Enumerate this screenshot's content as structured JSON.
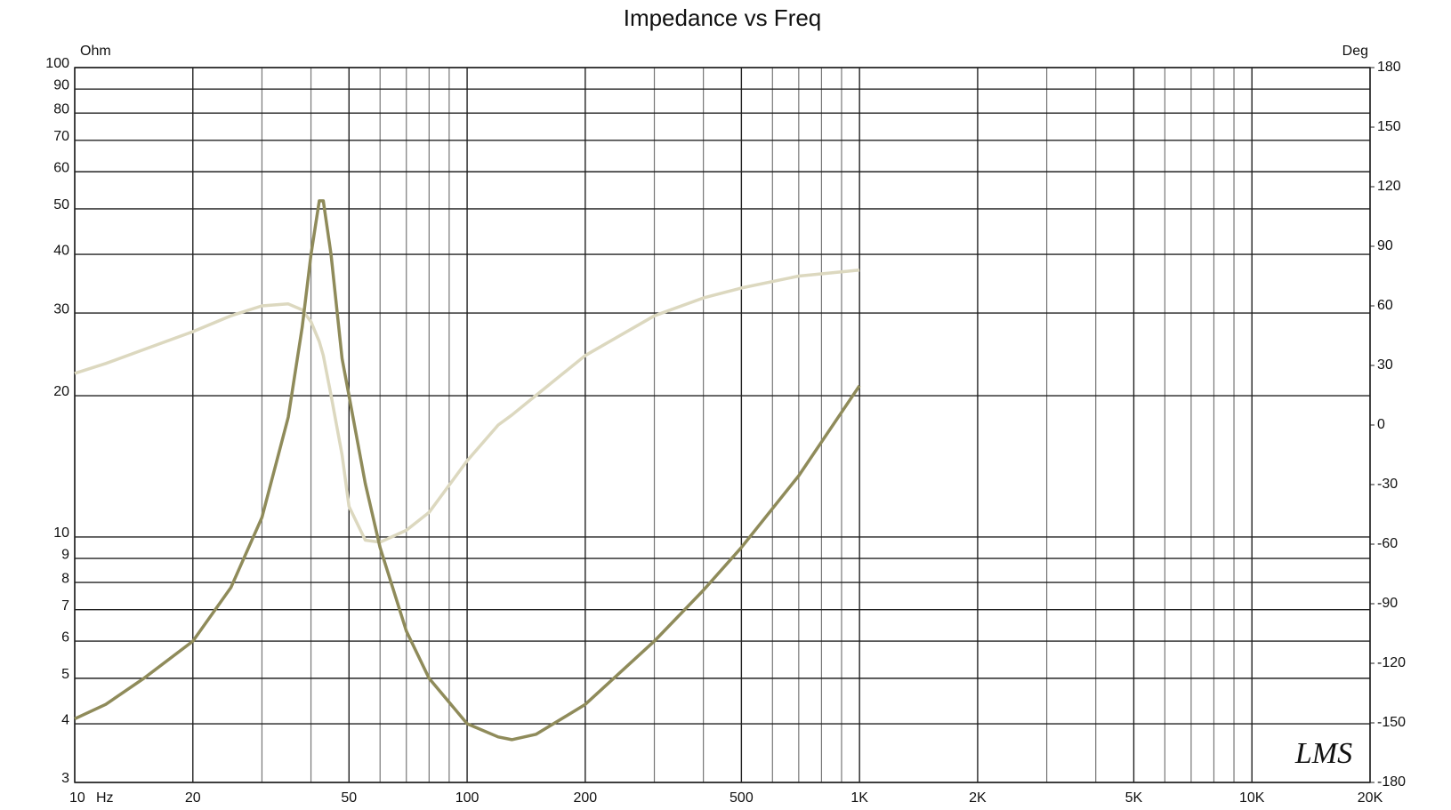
{
  "chart_data": {
    "type": "line",
    "title": "Impedance vs Freq",
    "y_label": "Ohm",
    "y2_label": "Deg",
    "x_label": "Hz",
    "logo": "LMS",
    "xscale": "log",
    "yscale": "log",
    "grid": true,
    "xlim": [
      10,
      20000
    ],
    "ylim": [
      3,
      100
    ],
    "y2lim": [
      -180,
      180
    ],
    "xticks": [
      10,
      20,
      50,
      100,
      200,
      500,
      {
        "value": 1000,
        "label": "1K"
      },
      {
        "value": 2000,
        "label": "2K"
      },
      {
        "value": 5000,
        "label": "5K"
      },
      {
        "value": 10000,
        "label": "10K"
      },
      {
        "value": 20000,
        "label": "20K"
      }
    ],
    "xminorticks": [
      30,
      40,
      60,
      70,
      80,
      90,
      300,
      400,
      600,
      700,
      800,
      900,
      3000,
      4000,
      6000,
      7000,
      8000,
      9000
    ],
    "yticks": [
      3,
      4,
      5,
      6,
      7,
      8,
      9,
      10,
      20,
      30,
      40,
      50,
      60,
      70,
      80,
      90,
      100
    ],
    "y2ticks": [
      -180,
      -150,
      -120,
      -90,
      -60,
      -30,
      0,
      30,
      60,
      90,
      120,
      150,
      180
    ],
    "x": [
      10,
      12,
      15,
      20,
      25,
      30,
      35,
      38,
      40,
      42,
      43,
      45,
      48,
      50,
      55,
      60,
      70,
      80,
      100,
      120,
      130,
      150,
      200,
      300,
      400,
      500,
      700,
      1000
    ],
    "series": [
      {
        "color": "#8f8b5a",
        "values": [
          4.1,
          4.4,
          5.0,
          6.0,
          7.8,
          11,
          18,
          28,
          40,
          52,
          52,
          40,
          24,
          20,
          13,
          9.5,
          6.3,
          5.0,
          4.0,
          3.75,
          3.7,
          3.8,
          4.4,
          6.0,
          7.7,
          9.5,
          13.5,
          21
        ]
      },
      {
        "color": "#dcd8bf",
        "axis": "y2",
        "values": [
          26,
          31,
          38,
          47,
          55,
          60,
          61,
          58,
          52,
          42,
          35,
          15,
          -15,
          -41,
          -58,
          -59,
          -53,
          -44,
          -18,
          0,
          5,
          15,
          35,
          55,
          64,
          69,
          75,
          78
        ]
      }
    ]
  }
}
